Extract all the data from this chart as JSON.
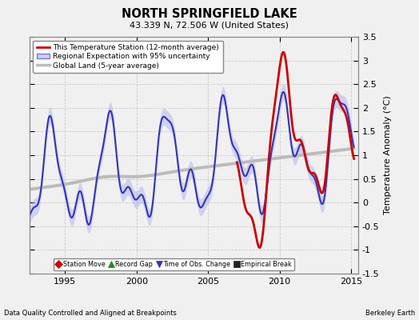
{
  "title": "NORTH SPRINGFIELD LAKE",
  "subtitle": "43.339 N, 72.506 W (United States)",
  "ylabel": "Temperature Anomaly (°C)",
  "footer_left": "Data Quality Controlled and Aligned at Breakpoints",
  "footer_right": "Berkeley Earth",
  "xlim": [
    1992.5,
    2015.5
  ],
  "ylim": [
    -1.5,
    3.5
  ],
  "yticks": [
    -1.5,
    -1.0,
    -0.5,
    0,
    0.5,
    1.0,
    1.5,
    2.0,
    2.5,
    3.0,
    3.5
  ],
  "xticks": [
    1995,
    2000,
    2005,
    2010,
    2015
  ],
  "background_color": "#f0f0f0",
  "legend_entries": [
    {
      "label": "This Temperature Station (12-month average)",
      "color": "#cc0000",
      "lw": 2
    },
    {
      "label": "Regional Expectation with 95% uncertainty",
      "color": "#3333bb",
      "lw": 1.5
    },
    {
      "label": "Global Land (5-year average)",
      "color": "#aaaaaa",
      "lw": 2.5
    }
  ],
  "marker_legend": [
    {
      "label": "Station Move",
      "marker": "D",
      "color": "#cc0000"
    },
    {
      "label": "Record Gap",
      "marker": "^",
      "color": "#228822"
    },
    {
      "label": "Time of Obs. Change",
      "marker": "v",
      "color": "#3333bb"
    },
    {
      "label": "Empirical Break",
      "marker": "s",
      "color": "#222222"
    }
  ]
}
